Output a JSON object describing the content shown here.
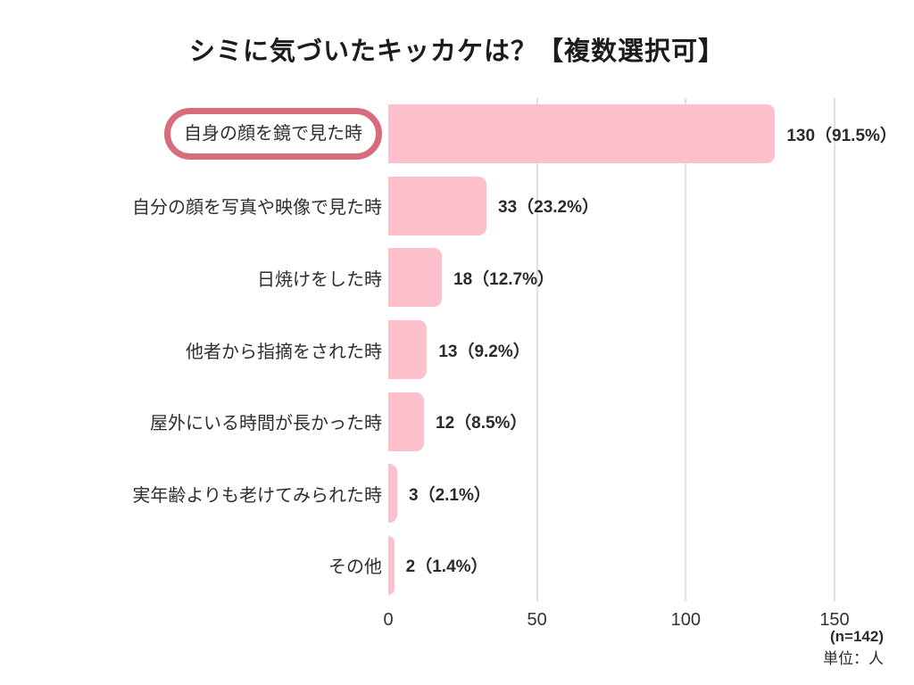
{
  "title": "シミに気づいたキッカケは？【複数選択可】",
  "chart_data": {
    "type": "bar",
    "orientation": "horizontal",
    "title": "シミに気づいたキッカケは？【複数選択可】",
    "categories": [
      "自身の顔を鏡で見た時",
      "自分の顔を写真や映像で見た時",
      "日焼けをした時",
      "他者から指摘をされた時",
      "屋外にいる時間が長かった時",
      "実年齢よりも老けてみられた時",
      "その他"
    ],
    "values": [
      130,
      33,
      18,
      13,
      12,
      3,
      2
    ],
    "percentages": [
      91.5,
      23.2,
      12.7,
      9.2,
      8.5,
      2.1,
      1.4
    ],
    "value_labels": [
      "130（91.5%）",
      "33（23.2%）",
      "18（12.7%）",
      "13（9.2%）",
      "12（8.5%）",
      "3（2.1%）",
      "2（1.4%）"
    ],
    "xlim": [
      0,
      150
    ],
    "x_ticks": [
      0,
      50,
      100,
      150
    ],
    "grid": true,
    "legend": "none",
    "highlighted_category_index": 0,
    "bar_color": "#ffc0cd",
    "highlight_border_color": "#d76c7d",
    "gridline_color": "#e0e0e0"
  },
  "footer": {
    "sample_size": "(n=142)",
    "unit": "単位：人"
  }
}
